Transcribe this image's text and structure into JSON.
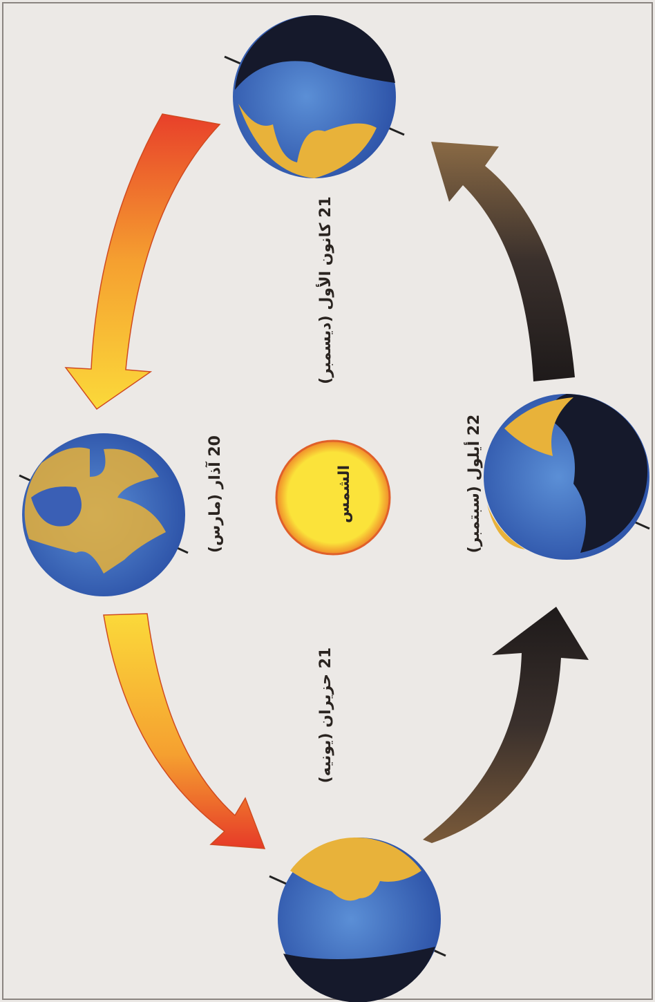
{
  "sun": {
    "label": "الشمس"
  },
  "earth_positions": [
    {
      "label": "21 كانون الأول (ديسمبر)"
    },
    {
      "label": "20 آذار (مارس)"
    },
    {
      "label": "22 أيلول (سبتمبر)"
    },
    {
      "label": "21 حزيران (يونيه)"
    }
  ]
}
